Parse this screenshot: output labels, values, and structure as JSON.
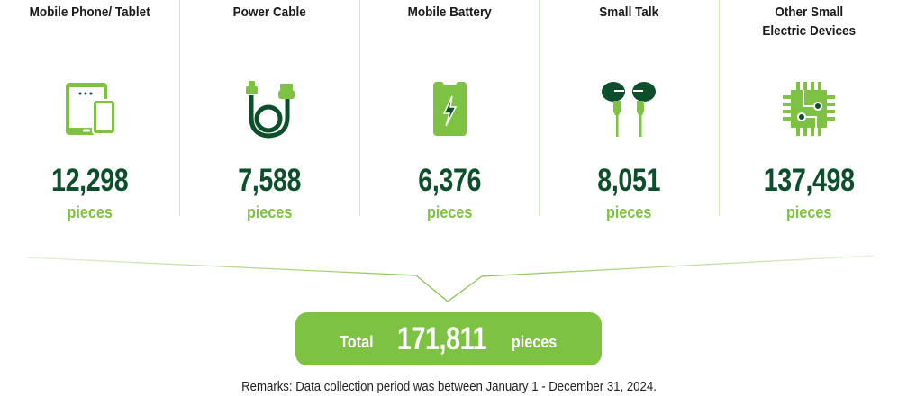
{
  "colors": {
    "accent": "#7dc242",
    "dark": "#0d4f2a"
  },
  "items": [
    {
      "title": "Mobile Phone/ Tablet",
      "icon": "tablet-phone-icon",
      "value": "12,298",
      "unit": "pieces"
    },
    {
      "title": "Power Cable",
      "icon": "power-cable-icon",
      "value": "7,588",
      "unit": "pieces"
    },
    {
      "title": "Mobile Battery",
      "icon": "mobile-battery-icon",
      "value": "6,376",
      "unit": "pieces"
    },
    {
      "title": "Small Talk",
      "icon": "earphones-icon",
      "value": "8,051",
      "unit": "pieces"
    },
    {
      "title": "Other Small\nElectric Devices",
      "icon": "chip-icon",
      "value": "137,498",
      "unit": "pieces"
    }
  ],
  "total": {
    "label": "Total",
    "value": "171,811",
    "unit": "pieces"
  },
  "remarks": "Remarks: Data collection period was between January 1 - December 31, 2024."
}
